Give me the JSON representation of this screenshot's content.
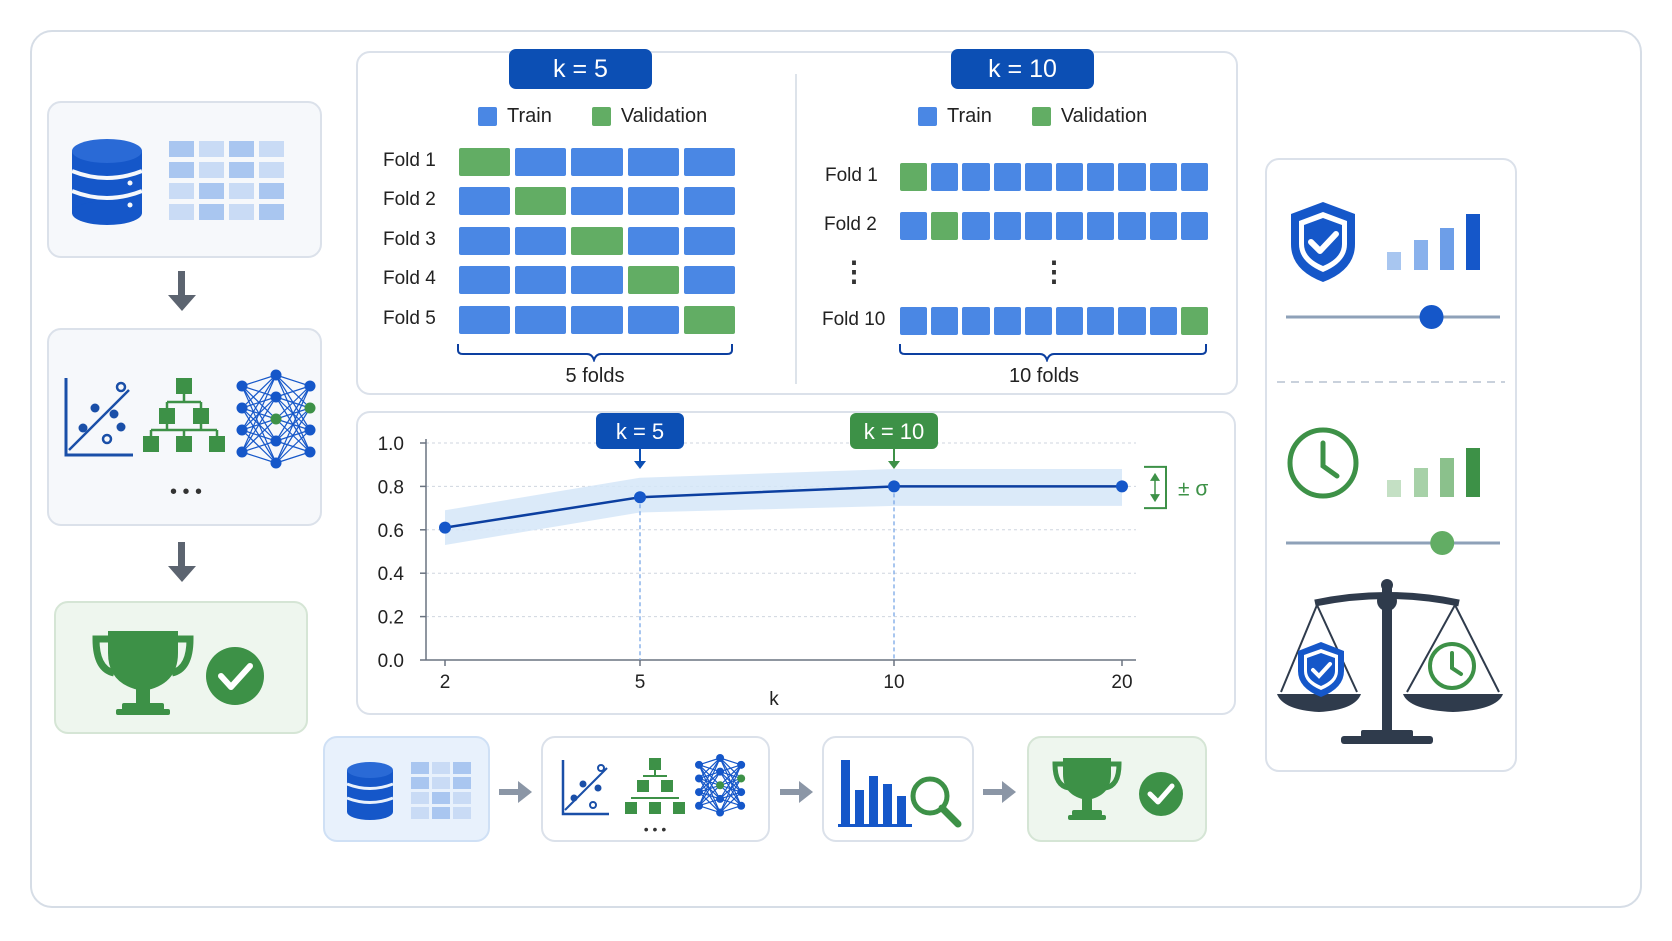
{
  "kfold_small": {
    "title": "k = 5",
    "legend": {
      "train": "Train",
      "validation": "Validation"
    },
    "folds": [
      {
        "label": "Fold 1",
        "val_index": 0
      },
      {
        "label": "Fold 2",
        "val_index": 1
      },
      {
        "label": "Fold 3",
        "val_index": 2
      },
      {
        "label": "Fold 4",
        "val_index": 3
      },
      {
        "label": "Fold 5",
        "val_index": 4
      }
    ],
    "segments": 5,
    "brace_label": "5 folds"
  },
  "kfold_large": {
    "title": "k = 10",
    "legend": {
      "train": "Train",
      "validation": "Validation"
    },
    "folds": [
      {
        "label": "Fold 1",
        "val_index": 0
      },
      {
        "label": "Fold 2",
        "val_index": 1
      },
      {
        "label": "Fold 10",
        "val_index": 9
      }
    ],
    "ellipsis": "⋮",
    "segments": 10,
    "brace_label": "10 folds"
  },
  "colors": {
    "train": "#4a87e4",
    "validation": "#62ad64",
    "dark_blue": "#0c4fb4",
    "green": "#3d9147",
    "line": "#0c3fa0",
    "band": "#d5e6f8"
  },
  "chart_data": {
    "type": "line",
    "x": [
      2,
      5,
      10,
      20
    ],
    "y": [
      0.61,
      0.75,
      0.8,
      0.8
    ],
    "band_upper": [
      0.69,
      0.84,
      0.88,
      0.88
    ],
    "band_lower": [
      0.53,
      0.68,
      0.71,
      0.71
    ],
    "x_ticks": [
      "2",
      "5",
      "10",
      "20"
    ],
    "y_ticks": [
      "0.0",
      "0.2",
      "0.4",
      "0.6",
      "0.8",
      "1.0"
    ],
    "xlabel": "k",
    "ylim": [
      0,
      1
    ],
    "grid": "horizontal dashed",
    "annotations": [
      {
        "text": "k = 5",
        "x": 5,
        "color": "#0c4fb4"
      },
      {
        "text": "k = 10",
        "x": 10,
        "color": "#3d9147"
      }
    ],
    "sigma_label": "± σ"
  },
  "left_flow": {
    "icons": [
      "database-icon",
      "table-grid-icon",
      "scatter-plot-icon",
      "decision-tree-icon",
      "neural-network-icon",
      "ellipsis",
      "trophy-icon",
      "check-circle-icon"
    ],
    "ellipsis": "• • •"
  },
  "bottom_flow": {
    "icons": [
      "database-icon",
      "table-grid-icon",
      "scatter-plot-icon",
      "decision-tree-icon",
      "neural-network-icon",
      "bar-chart-icon",
      "magnifier-icon",
      "trophy-icon",
      "check-circle-icon"
    ],
    "ellipsis": "• • •"
  },
  "right_panel": {
    "icons": [
      "shield-check-icon",
      "signal-bars-blue-icon",
      "slider-blue",
      "clock-icon",
      "signal-bars-green-icon",
      "slider-green",
      "balance-scale-icon"
    ],
    "slider_blue_value": 0.68,
    "slider_green_value": 0.73
  }
}
